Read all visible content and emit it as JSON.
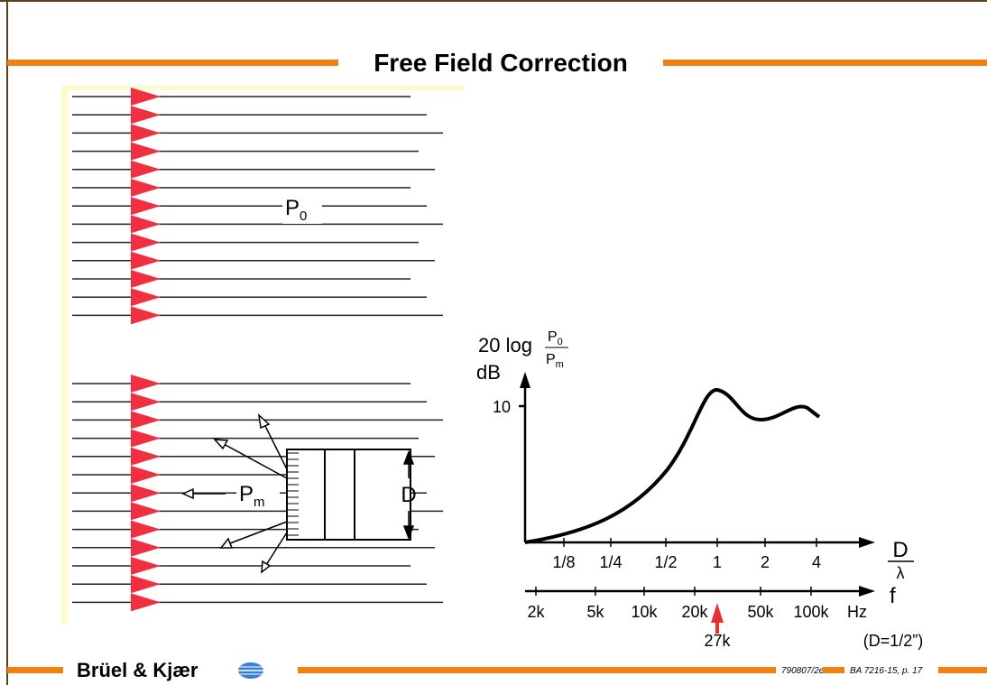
{
  "header": {
    "title": "Free Field Correction"
  },
  "diagram": {
    "incident_label": {
      "base": "P",
      "subscript": "0"
    },
    "mic_label": {
      "base": "P",
      "subscript": "m"
    },
    "diameter_label": "D"
  },
  "graph": {
    "y_label": "20 log",
    "y_fraction": {
      "num_base": "P",
      "num_sub": "0",
      "den_base": "P",
      "den_sub": "m"
    },
    "y_unit": "dB",
    "y_tick": "10",
    "ratio_ticks": [
      "1/8",
      "1/4",
      "1/2",
      "1",
      "2",
      "4"
    ],
    "ratio_label": {
      "num": "D",
      "den": "λ"
    },
    "freq_ticks": [
      "2k",
      "5k",
      "10k",
      "20k",
      "50k",
      "100k",
      "Hz"
    ],
    "freq_label": "f",
    "marker": "27k",
    "note": "(D=1/2”)"
  },
  "footer": {
    "brand": "Brüel & Kjær",
    "code": "790807/2e",
    "ref": "BA 7216-15, p. 17"
  }
}
